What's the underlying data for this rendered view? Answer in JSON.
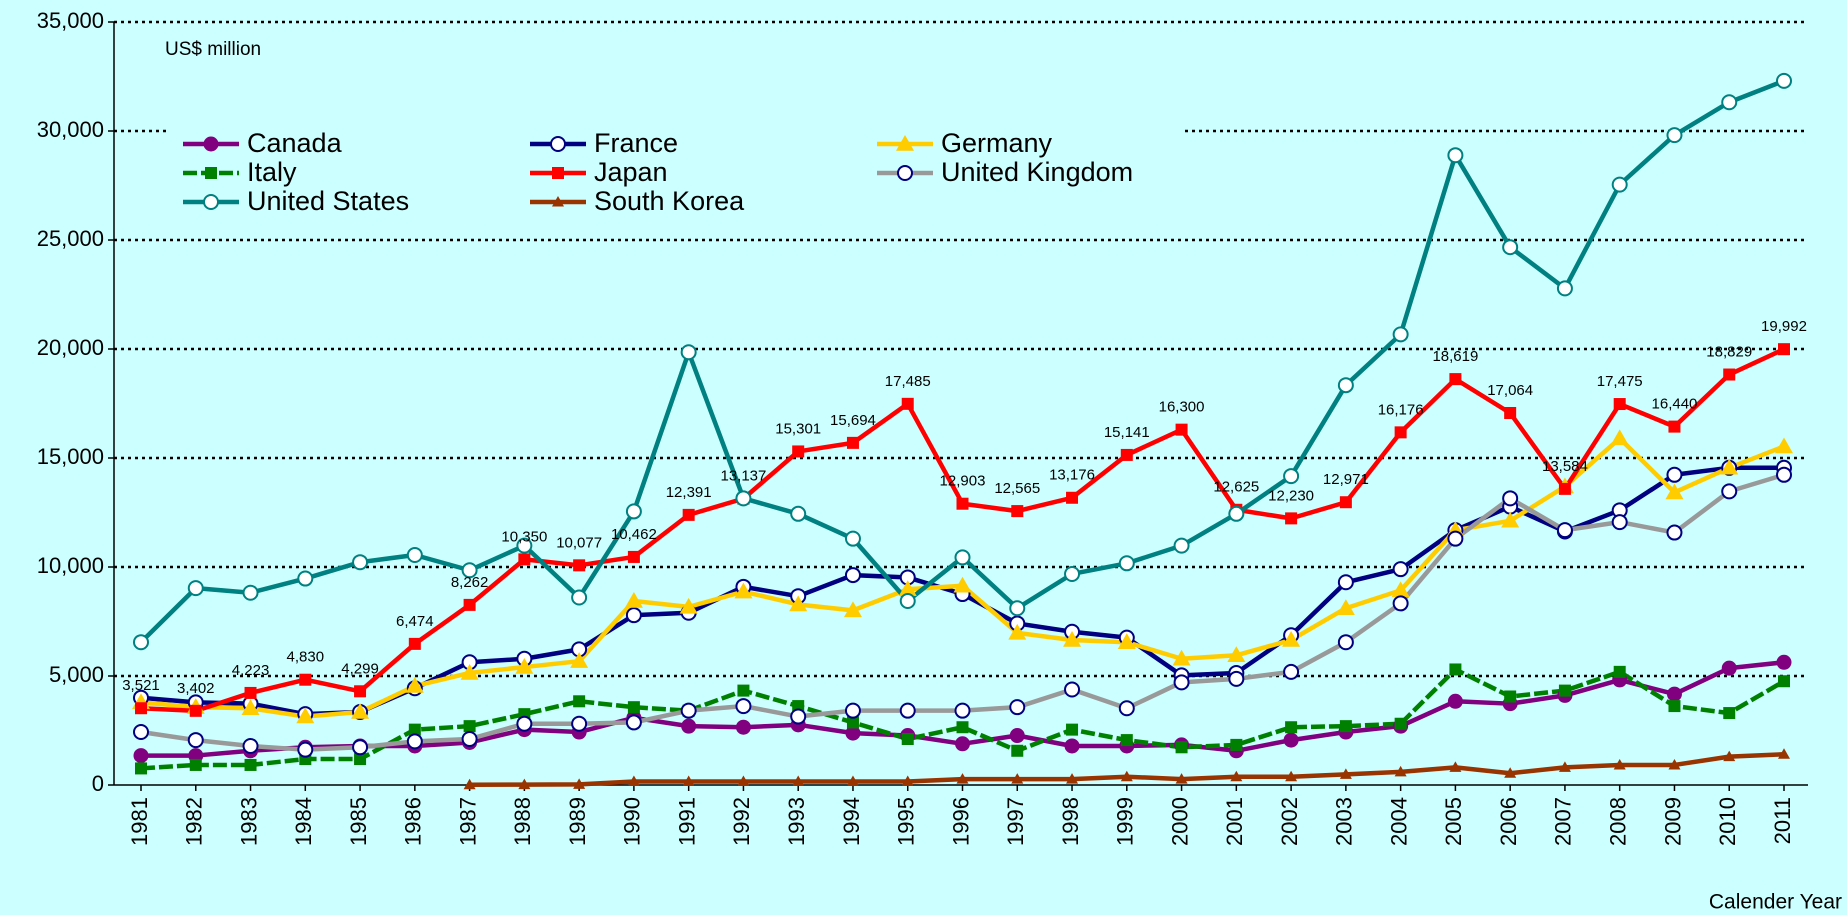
{
  "chart_data": {
    "type": "line",
    "annotations": [
      "US$ million"
    ],
    "xlabel": "Calender Year",
    "categories": [
      "1981",
      "1982",
      "1983",
      "1984",
      "1985",
      "1986",
      "1987",
      "1988",
      "1989",
      "1990",
      "1991",
      "1992",
      "1993",
      "1994",
      "1995",
      "1996",
      "1997",
      "1998",
      "1999",
      "2000",
      "2001",
      "2002",
      "2003",
      "2004",
      "2005",
      "2006",
      "2007",
      "2008",
      "2009",
      "2010",
      "2011"
    ],
    "ylim": [
      0,
      35000
    ],
    "yticks": [
      0,
      {
        "value": 5000,
        "label": "5,000"
      },
      {
        "value": 10000,
        "label": "10,000"
      },
      {
        "value": 15000,
        "label": "15,000"
      },
      {
        "value": 20000,
        "label": "20,000"
      },
      {
        "value": 25000,
        "label": "25,000"
      },
      {
        "value": 30000,
        "label": "30,000"
      },
      {
        "value": 35000,
        "label": "35,000"
      }
    ],
    "grid": true,
    "series": [
      {
        "name": "Canada",
        "color": "#800080",
        "marker": "circle-filled",
        "values": [
          1350,
          1350,
          1570,
          1730,
          1790,
          1790,
          1950,
          2540,
          2430,
          3080,
          2700,
          2650,
          2760,
          2380,
          2270,
          1890,
          2270,
          1790,
          1790,
          1840,
          1570,
          2060,
          2430,
          2700,
          3840,
          3730,
          4110,
          4820,
          4170,
          5360,
          5630
        ]
      },
      {
        "name": "France",
        "color": "#000080",
        "marker": "circle-open",
        "values": [
          4000,
          3790,
          3730,
          3250,
          3350,
          4440,
          5630,
          5790,
          6220,
          7790,
          7900,
          9090,
          8660,
          9630,
          9520,
          8760,
          7410,
          7030,
          6760,
          5030,
          5140,
          6870,
          9300,
          9900,
          11690,
          12770,
          11630,
          12600,
          14230,
          14550,
          14550
        ]
      },
      {
        "name": "Germany",
        "color": "#ffcc00",
        "marker": "triangle",
        "values": [
          3790,
          3570,
          3520,
          3140,
          3350,
          4540,
          5140,
          5410,
          5680,
          8440,
          8170,
          8870,
          8280,
          8010,
          8980,
          9140,
          6980,
          6650,
          6550,
          5790,
          5950,
          6650,
          8110,
          8930,
          11690,
          12120,
          13690,
          15900,
          13420,
          14550,
          15530
        ]
      },
      {
        "name": "Italy",
        "color": "#008000",
        "marker": "square",
        "dash": true,
        "values": [
          760,
          920,
          920,
          1190,
          1190,
          2540,
          2700,
          3250,
          3840,
          3570,
          3410,
          4330,
          3620,
          2870,
          2110,
          2650,
          1570,
          2540,
          2060,
          1730,
          1840,
          2650,
          2700,
          2810,
          5300,
          4060,
          4330,
          5190,
          3620,
          3300,
          4760
        ]
      },
      {
        "name": "Japan",
        "color": "#ff0000",
        "marker": "square",
        "values": [
          3521,
          3402,
          4223,
          4830,
          4299,
          6474,
          8262,
          10350,
          10077,
          10462,
          12391,
          13137,
          15301,
          15694,
          17485,
          12903,
          12565,
          13176,
          15141,
          16300,
          12625,
          12230,
          12971,
          16176,
          18619,
          17064,
          13584,
          17475,
          16440,
          18829,
          19992
        ],
        "value_labels": [
          "3,521",
          "3,402",
          "4,223",
          "4,830",
          "4,299",
          "6,474",
          "8,262",
          "10,350",
          "10,077",
          "10,462",
          "12,391",
          "13,137",
          "15,301",
          "15,694",
          "17,485",
          "12,903",
          "12,565",
          "13,176",
          "15,141",
          "16,300",
          "12,625",
          "12,230",
          "12,971",
          "16,176",
          "18,619",
          "17,064",
          "13,584",
          "17,475",
          "16,440",
          "18,829",
          "19,992"
        ]
      },
      {
        "name": "United Kingdom",
        "color": "#999999",
        "marker": "circle-open-navy",
        "values": [
          2430,
          2060,
          1790,
          1620,
          1730,
          2000,
          2110,
          2810,
          2810,
          2870,
          3410,
          3620,
          3140,
          3410,
          3410,
          3410,
          3570,
          4380,
          3520,
          4710,
          4870,
          5190,
          6550,
          8330,
          11300,
          13150,
          11690,
          12060,
          11580,
          13470,
          14230
        ]
      },
      {
        "name": "United States",
        "color": "#008080",
        "marker": "circle-open",
        "values": [
          6550,
          9030,
          8820,
          9470,
          10220,
          10550,
          9850,
          10980,
          8600,
          12550,
          19850,
          13150,
          12440,
          11300,
          8440,
          10440,
          8110,
          9680,
          10170,
          10980,
          12440,
          14170,
          18340,
          20670,
          28890,
          24670,
          22780,
          27540,
          29810,
          31320,
          32300
        ]
      },
      {
        "name": "South Korea",
        "color": "#993300",
        "marker": "triangle-small",
        "values": [
          null,
          null,
          null,
          null,
          null,
          null,
          10,
          20,
          30,
          160,
          160,
          160,
          160,
          160,
          160,
          270,
          270,
          270,
          380,
          270,
          380,
          380,
          490,
          600,
          810,
          540,
          810,
          920,
          920,
          1300,
          1410
        ]
      }
    ]
  }
}
